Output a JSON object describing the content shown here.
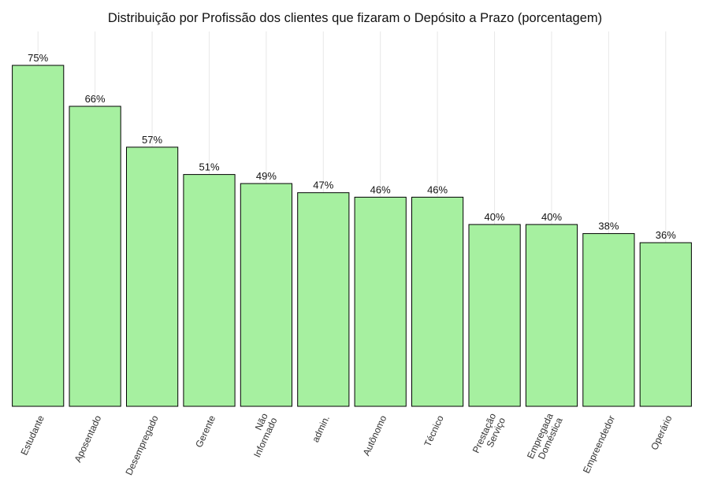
{
  "chart_data": {
    "type": "bar",
    "title": "Distribuição por Profissão dos clientes que fizaram o Depósito a Prazo (porcentagem)",
    "xlabel": "",
    "ylabel": "",
    "categories": [
      [
        "Estudante"
      ],
      [
        "Aposentado"
      ],
      [
        "Desempregado"
      ],
      [
        "Gerente"
      ],
      [
        "Não",
        "Informado"
      ],
      [
        "admin."
      ],
      [
        "Autônomo"
      ],
      [
        "Técnico"
      ],
      [
        "Prestação",
        "Serviço"
      ],
      [
        "Empregada",
        "Doméstica"
      ],
      [
        "Empreendedor"
      ],
      [
        "Operário"
      ]
    ],
    "values": [
      75,
      66,
      57,
      51,
      49,
      47,
      46,
      46,
      40,
      40,
      38,
      36
    ],
    "value_labels": [
      "75%",
      "66%",
      "57%",
      "51%",
      "49%",
      "47%",
      "46%",
      "46%",
      "40%",
      "40%",
      "38%",
      "36%"
    ],
    "ylim": [
      0,
      80
    ],
    "bar_color": "#a6f0a0",
    "bar_edge_color": "#000000",
    "grid": "vertical",
    "legend": "none"
  }
}
